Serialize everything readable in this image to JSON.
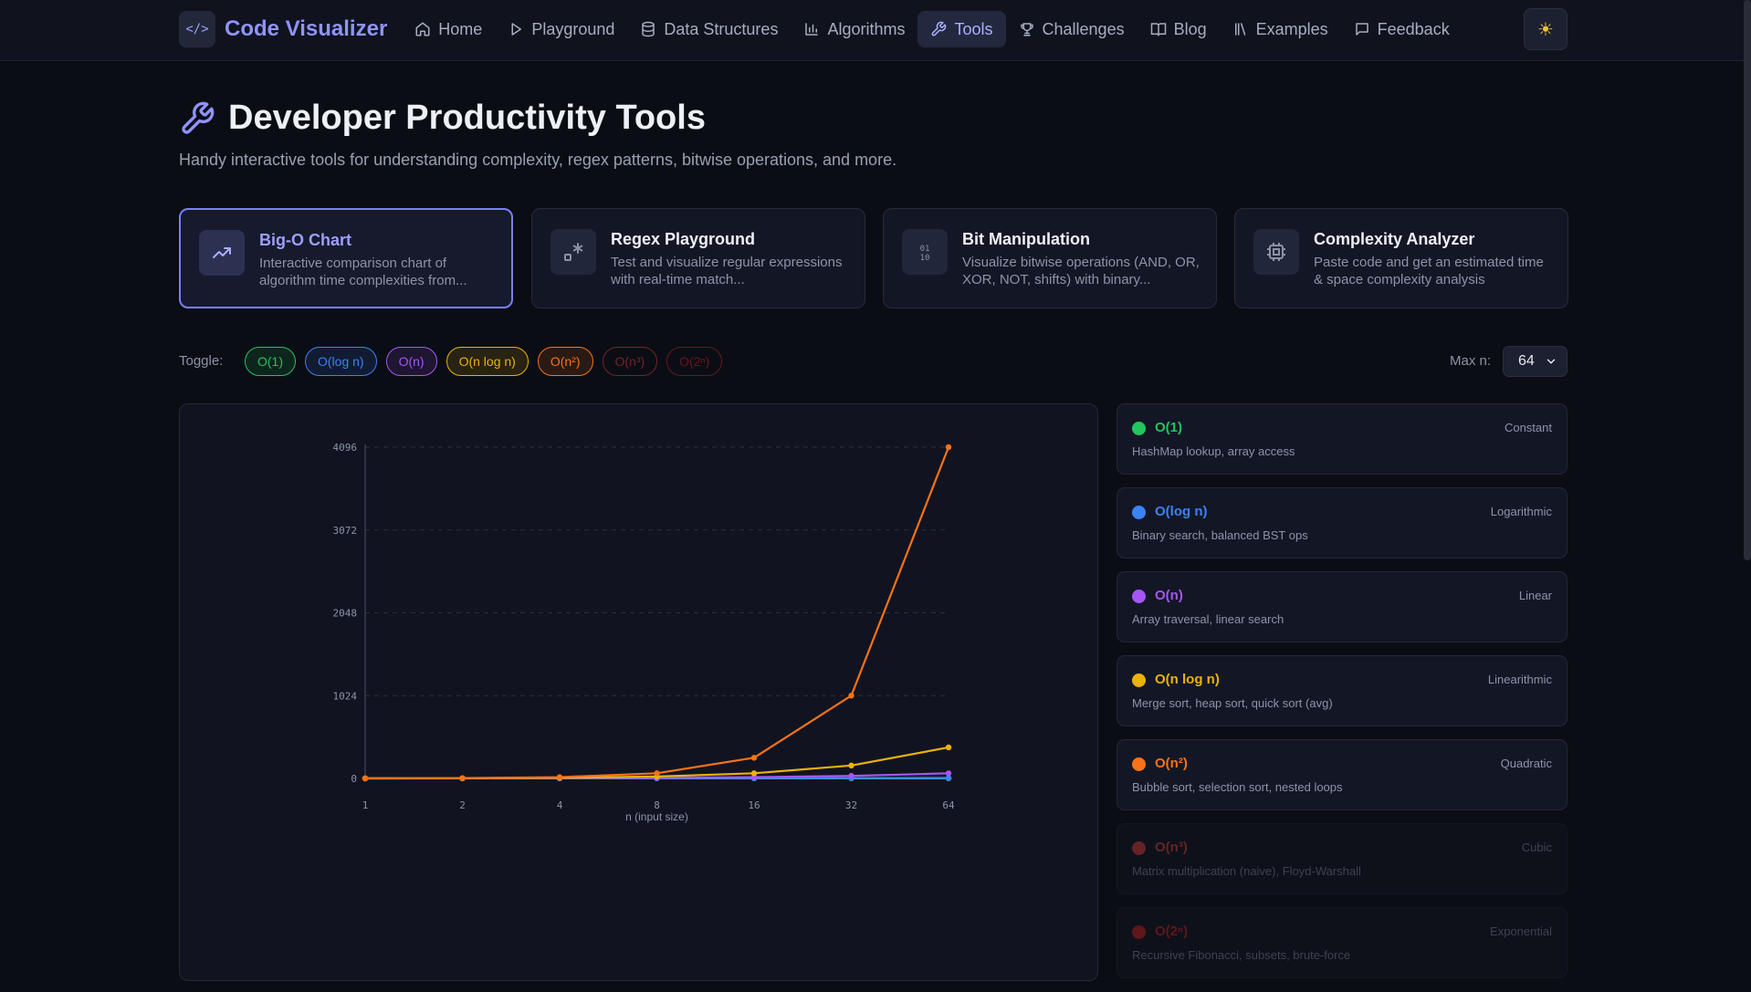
{
  "navbar": {
    "brand": "Code Visualizer",
    "items": [
      {
        "label": "Home",
        "icon": "home-icon"
      },
      {
        "label": "Playground",
        "icon": "play-icon"
      },
      {
        "label": "Data Structures",
        "icon": "database-icon"
      },
      {
        "label": "Algorithms",
        "icon": "bar-chart-icon"
      },
      {
        "label": "Tools",
        "icon": "wrench-icon",
        "active": true
      },
      {
        "label": "Challenges",
        "icon": "trophy-icon"
      },
      {
        "label": "Blog",
        "icon": "book-icon"
      },
      {
        "label": "Examples",
        "icon": "library-icon"
      },
      {
        "label": "Feedback",
        "icon": "message-icon"
      }
    ],
    "theme_icon": "sun-icon"
  },
  "header": {
    "title": "Developer Productivity Tools",
    "subtitle": "Handy interactive tools for understanding complexity, regex patterns, bitwise operations, and more."
  },
  "tools": [
    {
      "name": "Big-O Chart",
      "desc": "Interactive comparison chart of algorithm time complexities from...",
      "icon": "trend-icon",
      "active": true
    },
    {
      "name": "Regex Playground",
      "desc": "Test and visualize regular expressions with real-time match...",
      "icon": "regex-icon"
    },
    {
      "name": "Bit Manipulation",
      "desc": "Visualize bitwise operations (AND, OR, XOR, NOT, shifts) with binary...",
      "icon": "binary-icon"
    },
    {
      "name": "Complexity Analyzer",
      "desc": "Paste code and get an estimated time & space complexity analysis",
      "icon": "cpu-icon"
    }
  ],
  "controls": {
    "toggle_label": "Toggle:",
    "toggles": [
      {
        "label": "O(1)",
        "color": "#22c55e",
        "on": true
      },
      {
        "label": "O(log n)",
        "color": "#3b82f6",
        "on": true
      },
      {
        "label": "O(n)",
        "color": "#a855f7",
        "on": true
      },
      {
        "label": "O(n log n)",
        "color": "#eab308",
        "on": true
      },
      {
        "label": "O(n²)",
        "color": "#f97316",
        "on": true
      },
      {
        "label": "O(n³)",
        "color": "#ef4444",
        "on": false
      },
      {
        "label": "O(2ⁿ)",
        "color": "#dc2626",
        "on": false
      }
    ],
    "maxn_label": "Max n:",
    "maxn_value": "64"
  },
  "legend": [
    {
      "name": "O(1)",
      "tag": "Constant",
      "desc": "HashMap lookup, array access",
      "color": "#22c55e",
      "on": true
    },
    {
      "name": "O(log n)",
      "tag": "Logarithmic",
      "desc": "Binary search, balanced BST ops",
      "color": "#3b82f6",
      "on": true
    },
    {
      "name": "O(n)",
      "tag": "Linear",
      "desc": "Array traversal, linear search",
      "color": "#a855f7",
      "on": true
    },
    {
      "name": "O(n log n)",
      "tag": "Linearithmic",
      "desc": "Merge sort, heap sort, quick sort (avg)",
      "color": "#eab308",
      "on": true
    },
    {
      "name": "O(n²)",
      "tag": "Quadratic",
      "desc": "Bubble sort, selection sort, nested loops",
      "color": "#f97316",
      "on": true
    },
    {
      "name": "O(n³)",
      "tag": "Cubic",
      "desc": "Matrix multiplication (naive), Floyd-Warshall",
      "color": "#ef4444",
      "on": false
    },
    {
      "name": "O(2ⁿ)",
      "tag": "Exponential",
      "desc": "Recursive Fibonacci, subsets, brute-force",
      "color": "#dc2626",
      "on": false
    }
  ],
  "chart_data": {
    "type": "line",
    "x": [
      1,
      2,
      4,
      8,
      16,
      32,
      64
    ],
    "x_tick_labels": [
      "1",
      "2",
      "4",
      "8",
      "16",
      "32",
      "64"
    ],
    "xlabel": "n (input size)",
    "ylabel": "",
    "ylim": [
      0,
      4096
    ],
    "y_ticks": [
      0,
      1024,
      2048,
      3072,
      4096
    ],
    "grid": true,
    "series": [
      {
        "name": "O(1)",
        "color": "#22c55e",
        "values": [
          1,
          1,
          1,
          1,
          1,
          1,
          1
        ]
      },
      {
        "name": "O(log n)",
        "color": "#3b82f6",
        "values": [
          0,
          1,
          2,
          3,
          4,
          5,
          6
        ]
      },
      {
        "name": "O(n)",
        "color": "#a855f7",
        "values": [
          1,
          2,
          4,
          8,
          16,
          32,
          64
        ]
      },
      {
        "name": "O(n log n)",
        "color": "#eab308",
        "values": [
          0,
          2,
          8,
          24,
          64,
          160,
          384
        ]
      },
      {
        "name": "O(n²)",
        "color": "#f97316",
        "values": [
          1,
          4,
          16,
          64,
          256,
          1024,
          4096
        ]
      }
    ]
  }
}
